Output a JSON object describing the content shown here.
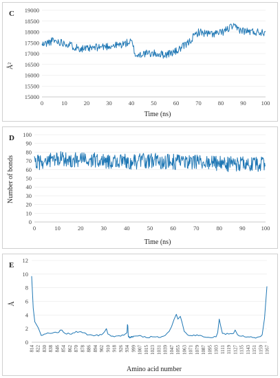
{
  "chart_data": [
    {
      "panel": "C",
      "type": "line",
      "xlabel": "Time (ns)",
      "ylabel": "Å²",
      "xlim": [
        0,
        100
      ],
      "ylim": [
        15000,
        19000
      ],
      "xticks": [
        "0",
        "10",
        "20",
        "30",
        "40",
        "50",
        "60",
        "70",
        "80",
        "90",
        "100"
      ],
      "yticks": [
        "15000",
        "15500",
        "16000",
        "16500",
        "17000",
        "17500",
        "18000",
        "18500",
        "19000"
      ],
      "grid": true,
      "series": [
        {
          "x": [
            0,
            5,
            10,
            15,
            20,
            25,
            30,
            35,
            40,
            42,
            45,
            50,
            55,
            60,
            65,
            68,
            70,
            75,
            80,
            85,
            90,
            95,
            100
          ],
          "values": [
            17400,
            17600,
            17500,
            17300,
            17200,
            17300,
            17350,
            17400,
            17550,
            16900,
            17000,
            17000,
            16950,
            17100,
            17450,
            17800,
            18000,
            17900,
            17950,
            18250,
            18050,
            18000,
            18000
          ]
        }
      ]
    },
    {
      "panel": "D",
      "type": "line",
      "xlabel": "Time (ns)",
      "ylabel": "Number of bonds",
      "xlim": [
        0,
        100
      ],
      "ylim": [
        0,
        100
      ],
      "xticks": [
        "0",
        "10",
        "20",
        "30",
        "40",
        "50",
        "60",
        "70",
        "80",
        "90",
        "100"
      ],
      "yticks": [
        "0",
        "10",
        "20",
        "30",
        "40",
        "50",
        "60",
        "70",
        "80",
        "90",
        "100"
      ],
      "grid": true,
      "series": [
        {
          "x": [
            0,
            10,
            20,
            30,
            40,
            50,
            60,
            70,
            80,
            90,
            100
          ],
          "values": [
            68,
            72,
            71,
            70,
            69,
            70,
            69,
            68,
            67,
            66,
            66
          ]
        }
      ]
    },
    {
      "panel": "E",
      "type": "line",
      "xlabel": "Amino acid number",
      "ylabel": "Å",
      "ylim": [
        0,
        12
      ],
      "yticks": [
        "0",
        "2",
        "4",
        "6",
        "8",
        "10",
        "12"
      ],
      "grid": true,
      "categories": [
        "814",
        "822",
        "830",
        "838",
        "846",
        "854",
        "862",
        "870",
        "878",
        "886",
        "894",
        "902",
        "910",
        "918",
        "926",
        "934",
        "999",
        "1007",
        "1015",
        "1023",
        "1031",
        "1039",
        "1047",
        "1055",
        "1063",
        "1071",
        "1079",
        "1087",
        "1095",
        "1103",
        "1111",
        "1119",
        "1127",
        "1135",
        "1143",
        "1151",
        "1159",
        "1167"
      ],
      "series": [
        {
          "x": [
            814,
            816,
            818,
            820,
            822,
            826,
            830,
            838,
            846,
            852,
            856,
            862,
            870,
            878,
            886,
            894,
            902,
            908,
            910,
            914,
            918,
            926,
            934,
            938,
            942,
            946,
            950,
            960,
            970,
            980,
            990,
            1000,
            1007,
            1015,
            1023,
            1031,
            1039,
            1044,
            1047,
            1050,
            1053,
            1055,
            1058,
            1060,
            1063,
            1067,
            1071,
            1079,
            1087,
            1095,
            1103,
            1105,
            1107,
            1111,
            1119,
            1125,
            1127,
            1130,
            1135,
            1143,
            1151,
            1157,
            1161,
            1164,
            1167
          ],
          "values": [
            9.7,
            5.0,
            3.0,
            2.6,
            2.2,
            1.0,
            1.2,
            1.3,
            1.4,
            1.8,
            1.3,
            1.2,
            1.6,
            1.4,
            1.1,
            1.0,
            1.1,
            2.0,
            1.2,
            0.9,
            0.8,
            0.9,
            1.4,
            2.6,
            2.4,
            1.0,
            0.8,
            0.7,
            0.7,
            0.8,
            0.8,
            0.9,
            1.0,
            0.7,
            0.8,
            0.7,
            1.0,
            1.6,
            2.3,
            3.3,
            4.1,
            3.4,
            3.8,
            3.0,
            1.6,
            1.1,
            1.0,
            1.1,
            0.8,
            0.7,
            0.8,
            1.4,
            3.4,
            1.3,
            1.2,
            1.3,
            1.8,
            1.1,
            0.9,
            0.8,
            0.7,
            0.8,
            1.1,
            3.5,
            8.2
          ]
        }
      ]
    }
  ]
}
